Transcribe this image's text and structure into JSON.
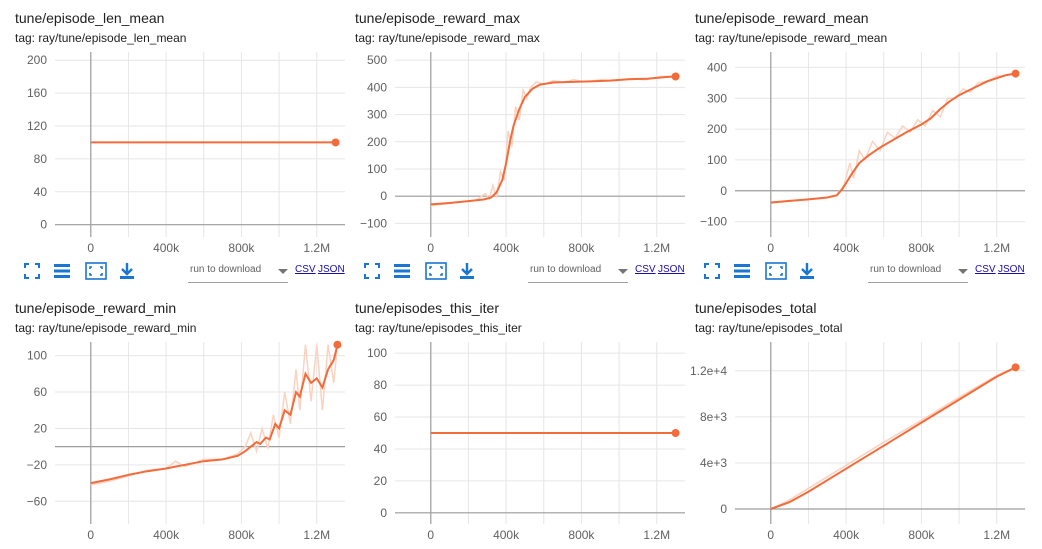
{
  "toolbar": {
    "run_select_label": "run to download",
    "csv_label": "CSV",
    "json_label": "JSON",
    "icons": [
      "fit-domain-icon",
      "toggle-log-icon",
      "expand-icon",
      "download-icon"
    ]
  },
  "colors": {
    "line": "#f26b3a",
    "smooth_raw": "#fbd2c0",
    "grid": "#e6e6e6",
    "axis": "#9e9e9e"
  },
  "chart_data": [
    {
      "type": "line",
      "title": "tune/episode_len_mean",
      "tag": "tag: ray/tune/episode_len_mean",
      "x_ticks": [
        {
          "v": 0,
          "label": "0"
        },
        {
          "v": 400000,
          "label": "400k"
        },
        {
          "v": 800000,
          "label": "800k"
        },
        {
          "v": 1200000,
          "label": "1.2M"
        }
      ],
      "y_ticks": [
        {
          "v": 0,
          "label": "0"
        },
        {
          "v": 40,
          "label": "40"
        },
        {
          "v": 80,
          "label": "80"
        },
        {
          "v": 120,
          "label": "120"
        },
        {
          "v": 160,
          "label": "160"
        },
        {
          "v": 200,
          "label": "200"
        }
      ],
      "xlim": [
        -190000,
        1350000
      ],
      "ylim": [
        -15,
        210
      ],
      "grid": true,
      "series": [
        {
          "x": [
            0,
            1300000
          ],
          "y": [
            100,
            100
          ],
          "raw": [
            [
              0,
              100
            ],
            [
              1300000,
              100
            ]
          ]
        }
      ]
    },
    {
      "type": "line",
      "title": "tune/episode_reward_max",
      "tag": "tag: ray/tune/episode_reward_max",
      "x_ticks": [
        {
          "v": 0,
          "label": "0"
        },
        {
          "v": 400000,
          "label": "400k"
        },
        {
          "v": 800000,
          "label": "800k"
        },
        {
          "v": 1200000,
          "label": "1.2M"
        }
      ],
      "y_ticks": [
        {
          "v": -100,
          "label": "−100"
        },
        {
          "v": 0,
          "label": "0"
        },
        {
          "v": 100,
          "label": "100"
        },
        {
          "v": 200,
          "label": "200"
        },
        {
          "v": 300,
          "label": "300"
        },
        {
          "v": 400,
          "label": "400"
        },
        {
          "v": 500,
          "label": "500"
        }
      ],
      "xlim": [
        -190000,
        1350000
      ],
      "ylim": [
        -150,
        530
      ],
      "grid": true,
      "series": [
        {
          "x": [
            0,
            100000,
            200000,
            280000,
            320000,
            350000,
            380000,
            400000,
            420000,
            440000,
            470000,
            500000,
            540000,
            580000,
            650000,
            750000,
            850000,
            950000,
            1050000,
            1150000,
            1250000,
            1300000
          ],
          "y": [
            -30,
            -25,
            -18,
            -12,
            -5,
            15,
            60,
            120,
            200,
            260,
            320,
            365,
            395,
            410,
            418,
            420,
            422,
            425,
            430,
            432,
            438,
            440
          ],
          "raw": [
            [
              0,
              -35
            ],
            [
              80000,
              -28
            ],
            [
              160000,
              -20
            ],
            [
              240000,
              -15
            ],
            [
              290000,
              10
            ],
            [
              310000,
              -10
            ],
            [
              330000,
              40
            ],
            [
              350000,
              -5
            ],
            [
              370000,
              90
            ],
            [
              390000,
              60
            ],
            [
              410000,
              240
            ],
            [
              430000,
              180
            ],
            [
              450000,
              330
            ],
            [
              470000,
              280
            ],
            [
              490000,
              390
            ],
            [
              510000,
              360
            ],
            [
              530000,
              400
            ],
            [
              560000,
              420
            ],
            [
              600000,
              410
            ],
            [
              650000,
              425
            ],
            [
              700000,
              418
            ],
            [
              760000,
              428
            ],
            [
              820000,
              420
            ],
            [
              900000,
              428
            ],
            [
              980000,
              424
            ],
            [
              1060000,
              432
            ],
            [
              1140000,
              428
            ],
            [
              1220000,
              440
            ],
            [
              1300000,
              440
            ]
          ]
        }
      ]
    },
    {
      "type": "line",
      "title": "tune/episode_reward_mean",
      "tag": "tag: ray/tune/episode_reward_mean",
      "x_ticks": [
        {
          "v": 0,
          "label": "0"
        },
        {
          "v": 400000,
          "label": "400k"
        },
        {
          "v": 800000,
          "label": "800k"
        },
        {
          "v": 1200000,
          "label": "1.2M"
        }
      ],
      "y_ticks": [
        {
          "v": -100,
          "label": "−100"
        },
        {
          "v": 0,
          "label": "0"
        },
        {
          "v": 100,
          "label": "100"
        },
        {
          "v": 200,
          "label": "200"
        },
        {
          "v": 300,
          "label": "300"
        },
        {
          "v": 400,
          "label": "400"
        }
      ],
      "xlim": [
        -190000,
        1350000
      ],
      "ylim": [
        -150,
        450
      ],
      "grid": true,
      "series": [
        {
          "x": [
            0,
            100000,
            200000,
            300000,
            350000,
            380000,
            400000,
            430000,
            470000,
            520000,
            580000,
            650000,
            720000,
            800000,
            850000,
            900000,
            950000,
            1000000,
            1050000,
            1100000,
            1150000,
            1200000,
            1250000,
            1300000
          ],
          "y": [
            -38,
            -33,
            -28,
            -22,
            -15,
            5,
            25,
            55,
            90,
            115,
            140,
            165,
            190,
            215,
            235,
            265,
            290,
            310,
            325,
            340,
            355,
            365,
            375,
            380
          ],
          "raw": [
            [
              0,
              -40
            ],
            [
              100000,
              -34
            ],
            [
              200000,
              -28
            ],
            [
              300000,
              -22
            ],
            [
              350000,
              -14
            ],
            [
              390000,
              20
            ],
            [
              420000,
              90
            ],
            [
              440000,
              40
            ],
            [
              470000,
              130
            ],
            [
              500000,
              100
            ],
            [
              540000,
              160
            ],
            [
              580000,
              130
            ],
            [
              620000,
              190
            ],
            [
              660000,
              170
            ],
            [
              700000,
              210
            ],
            [
              740000,
              190
            ],
            [
              780000,
              230
            ],
            [
              820000,
              210
            ],
            [
              860000,
              260
            ],
            [
              900000,
              240
            ],
            [
              940000,
              300
            ],
            [
              980000,
              300
            ],
            [
              1020000,
              330
            ],
            [
              1060000,
              320
            ],
            [
              1100000,
              350
            ],
            [
              1150000,
              355
            ],
            [
              1200000,
              372
            ],
            [
              1250000,
              375
            ],
            [
              1300000,
              382
            ]
          ]
        }
      ]
    },
    {
      "type": "line",
      "title": "tune/episode_reward_min",
      "tag": "tag: ray/tune/episode_reward_min",
      "x_ticks": [
        {
          "v": 0,
          "label": "0"
        },
        {
          "v": 400000,
          "label": "400k"
        },
        {
          "v": 800000,
          "label": "800k"
        },
        {
          "v": 1200000,
          "label": "1.2M"
        }
      ],
      "y_ticks": [
        {
          "v": -60,
          "label": "−60"
        },
        {
          "v": -20,
          "label": "−20"
        },
        {
          "v": 20,
          "label": "20"
        },
        {
          "v": 60,
          "label": "60"
        },
        {
          "v": 100,
          "label": "100"
        }
      ],
      "xlim": [
        -190000,
        1350000
      ],
      "ylim": [
        -85,
        115
      ],
      "grid": true,
      "series": [
        {
          "x": [
            0,
            100000,
            200000,
            300000,
            400000,
            500000,
            600000,
            700000,
            780000,
            820000,
            850000,
            880000,
            900000,
            930000,
            950000,
            980000,
            1000000,
            1030000,
            1060000,
            1090000,
            1110000,
            1140000,
            1170000,
            1200000,
            1230000,
            1260000,
            1290000,
            1310000
          ],
          "y": [
            -40,
            -36,
            -31,
            -27,
            -24,
            -20,
            -16,
            -14,
            -10,
            -5,
            0,
            5,
            3,
            10,
            8,
            25,
            20,
            40,
            35,
            60,
            55,
            80,
            70,
            75,
            65,
            85,
            95,
            112
          ],
          "raw": [
            [
              0,
              -42
            ],
            [
              100000,
              -38
            ],
            [
              200000,
              -32
            ],
            [
              300000,
              -26
            ],
            [
              400000,
              -24
            ],
            [
              450000,
              -16
            ],
            [
              500000,
              -22
            ],
            [
              600000,
              -14
            ],
            [
              700000,
              -14
            ],
            [
              780000,
              -8
            ],
            [
              820000,
              0
            ],
            [
              850000,
              15
            ],
            [
              880000,
              -5
            ],
            [
              910000,
              20
            ],
            [
              940000,
              -2
            ],
            [
              970000,
              35
            ],
            [
              1000000,
              10
            ],
            [
              1030000,
              60
            ],
            [
              1060000,
              25
            ],
            [
              1090000,
              85
            ],
            [
              1110000,
              40
            ],
            [
              1140000,
              112
            ],
            [
              1170000,
              50
            ],
            [
              1200000,
              112
            ],
            [
              1230000,
              40
            ],
            [
              1260000,
              112
            ],
            [
              1290000,
              70
            ],
            [
              1310000,
              112
            ]
          ]
        }
      ]
    },
    {
      "type": "line",
      "title": "tune/episodes_this_iter",
      "tag": "tag: ray/tune/episodes_this_iter",
      "x_ticks": [
        {
          "v": 0,
          "label": "0"
        },
        {
          "v": 400000,
          "label": "400k"
        },
        {
          "v": 800000,
          "label": "800k"
        },
        {
          "v": 1200000,
          "label": "1.2M"
        }
      ],
      "y_ticks": [
        {
          "v": 0,
          "label": "0"
        },
        {
          "v": 20,
          "label": "20"
        },
        {
          "v": 40,
          "label": "40"
        },
        {
          "v": 60,
          "label": "60"
        },
        {
          "v": 80,
          "label": "80"
        },
        {
          "v": 100,
          "label": "100"
        }
      ],
      "xlim": [
        -190000,
        1350000
      ],
      "ylim": [
        -7,
        107
      ],
      "grid": true,
      "series": [
        {
          "x": [
            0,
            1300000
          ],
          "y": [
            50,
            50
          ],
          "raw": [
            [
              0,
              50
            ],
            [
              1300000,
              50
            ]
          ]
        }
      ]
    },
    {
      "type": "line",
      "title": "tune/episodes_total",
      "tag": "tag: ray/tune/episodes_total",
      "x_ticks": [
        {
          "v": 0,
          "label": "0"
        },
        {
          "v": 400000,
          "label": "400k"
        },
        {
          "v": 800000,
          "label": "800k"
        },
        {
          "v": 1200000,
          "label": "1.2M"
        }
      ],
      "y_ticks": [
        {
          "v": 0,
          "label": "0"
        },
        {
          "v": 4000,
          "label": "4e+3"
        },
        {
          "v": 8000,
          "label": "8e+3"
        },
        {
          "v": 12000,
          "label": "1.2e+4"
        }
      ],
      "xlim": [
        -190000,
        1350000
      ],
      "ylim": [
        -1300,
        14500
      ],
      "grid": true,
      "series": [
        {
          "x": [
            0,
            100000,
            200000,
            400000,
            600000,
            800000,
            1000000,
            1200000,
            1300000
          ],
          "y": [
            0,
            600,
            1500,
            3500,
            5500,
            7500,
            9500,
            11500,
            12300
          ],
          "raw": [
            [
              0,
              0
            ],
            [
              100000,
              800
            ],
            [
              200000,
              1800
            ],
            [
              400000,
              3800
            ],
            [
              600000,
              5800
            ],
            [
              800000,
              7700
            ],
            [
              1000000,
              9700
            ],
            [
              1200000,
              11600
            ],
            [
              1300000,
              12300
            ]
          ]
        }
      ]
    }
  ]
}
